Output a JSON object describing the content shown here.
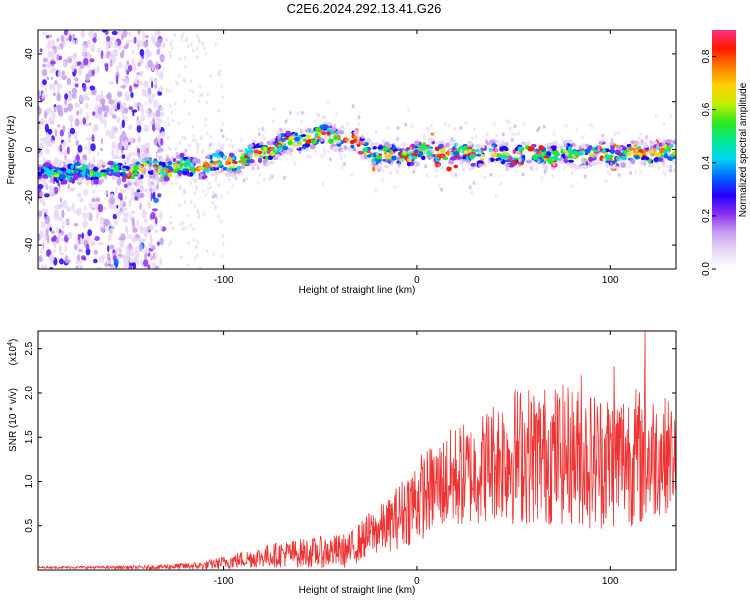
{
  "title": "C2E6.2024.292.13.41.G26",
  "chart_data": [
    {
      "type": "heatmap",
      "xlabel": "Height of straight line (km)",
      "ylabel": "Frequency (Hz)",
      "xlim": [
        -196,
        134
      ],
      "ylim": [
        -50,
        50
      ],
      "xticks": [
        -100,
        0,
        100
      ],
      "yticks": [
        -40,
        -20,
        0,
        20,
        40
      ],
      "colorbar": {
        "label": "Normalized spectral amplitude",
        "range": [
          0.0,
          0.9
        ],
        "ticks": [
          "0.0",
          "0.2",
          "0.4",
          "0.6",
          "0.8"
        ],
        "colors": [
          "#ffffff",
          "#e8d8f4",
          "#c79cf0",
          "#8b2ff0",
          "#2200ff",
          "#0066ff",
          "#00d8f0",
          "#00e890",
          "#2ee81a",
          "#c8f000",
          "#ffd000",
          "#ff7a00",
          "#ff1a00",
          "#ff2f85"
        ]
      },
      "center_line": {
        "x": [
          -196,
          -150,
          -130,
          -110,
          -90,
          -70,
          -55,
          -45,
          -38,
          -30,
          -20,
          -10,
          0,
          15,
          30,
          50,
          70,
          90,
          110,
          125,
          134
        ],
        "y": [
          -10,
          -9,
          -8,
          -7,
          -4,
          2,
          5,
          6,
          5,
          2,
          -2,
          -3,
          -1,
          -1,
          -2,
          -2,
          -2,
          -2,
          -2,
          -1,
          -2
        ]
      }
    },
    {
      "type": "line",
      "xlabel": "Height of straight line (km)",
      "ylabel": "SNR (10 * v/v)",
      "scale_label": "(x10",
      "scale_exp": "4",
      "xlim": [
        -196,
        134
      ],
      "ylim": [
        0,
        2.7
      ],
      "xticks": [
        -100,
        0,
        100
      ],
      "yticks": [
        "0.5",
        "1.0",
        "1.5",
        "2.0",
        "2.5"
      ],
      "color": "#ee3333",
      "series_envelope": {
        "x": [
          -196,
          -140,
          -110,
          -90,
          -70,
          -50,
          -35,
          -25,
          -15,
          0,
          10,
          20,
          30,
          40,
          50,
          60,
          70,
          80,
          90,
          100,
          110,
          118,
          125,
          134
        ],
        "median": [
          0.03,
          0.03,
          0.05,
          0.12,
          0.18,
          0.2,
          0.22,
          0.4,
          0.5,
          0.8,
          0.95,
          1.05,
          1.1,
          1.25,
          1.3,
          1.3,
          1.3,
          1.3,
          1.25,
          1.25,
          1.3,
          1.25,
          1.3,
          1.3
        ],
        "spread": [
          0.01,
          0.02,
          0.05,
          0.1,
          0.15,
          0.18,
          0.2,
          0.25,
          0.3,
          0.5,
          0.5,
          0.6,
          0.6,
          0.7,
          0.8,
          0.8,
          0.8,
          0.8,
          0.8,
          0.8,
          0.8,
          0.8,
          0.7,
          0.6
        ],
        "peaks": [
          [
            85,
            2.2
          ],
          [
            102,
            2.3
          ],
          [
            118,
            2.7
          ]
        ]
      }
    }
  ]
}
